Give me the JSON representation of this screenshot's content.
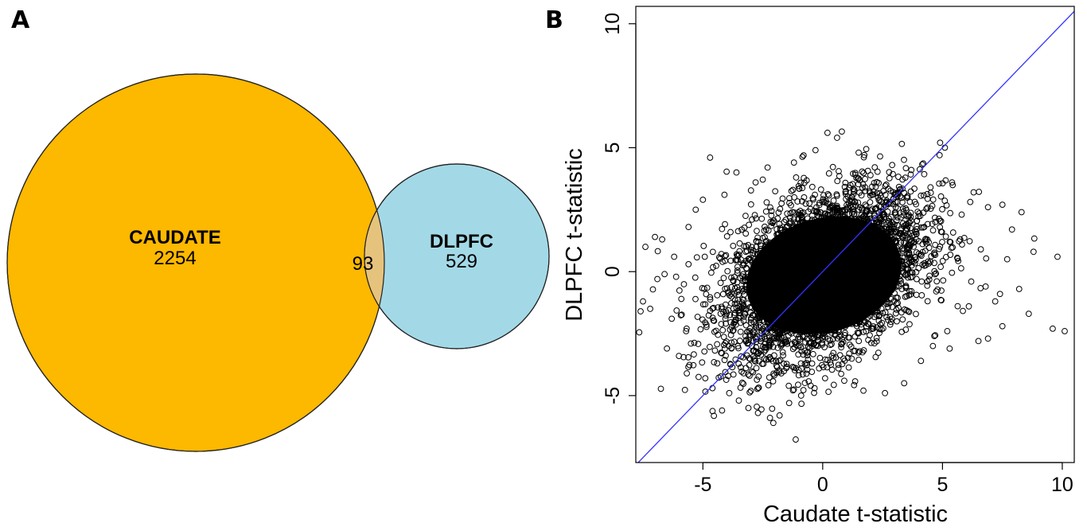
{
  "panel_labels": {
    "a": "A",
    "b": "B"
  },
  "colors": {
    "caudate": "#FDB800",
    "dlpfc": "#A3D9E7",
    "overlap": "#E6C37D",
    "identity_line": "#3333FF",
    "points": "#000000"
  },
  "chart_data": [
    {
      "type": "venn",
      "sets": [
        {
          "name": "CAUDATE",
          "count": "2254"
        },
        {
          "name": "DLPFC",
          "count": "529"
        }
      ],
      "overlap": "93"
    },
    {
      "type": "scatter",
      "xlabel": "Caudate t-statistic",
      "ylabel": "DLPFC t-statistic",
      "xlim": [
        -7.8,
        10.5
      ],
      "ylim": [
        -7.7,
        10.7
      ],
      "xticks": [
        -5,
        0,
        5,
        10
      ],
      "yticks": [
        -5,
        0,
        5,
        10
      ],
      "xtick_labels": [
        "-5",
        "0",
        "5",
        "10"
      ],
      "ytick_labels": [
        "-5",
        "0",
        "5",
        "10"
      ],
      "reference_line": {
        "slope": 1,
        "intercept": 0
      },
      "grid": false,
      "legend": "none",
      "points": [
        [
          0.2,
          5.6
        ],
        [
          0.6,
          5.4
        ],
        [
          -4.7,
          4.6
        ],
        [
          4.9,
          5.2
        ],
        [
          5.1,
          5.0
        ],
        [
          -3.6,
          4.0
        ],
        [
          -2.3,
          4.2
        ],
        [
          6.9,
          2.6
        ],
        [
          7.5,
          2.7
        ],
        [
          8.3,
          2.4
        ],
        [
          8.8,
          0.8
        ],
        [
          9.8,
          0.6
        ],
        [
          9.6,
          -2.3
        ],
        [
          10.1,
          -2.4
        ],
        [
          8.6,
          -1.7
        ],
        [
          7.4,
          -0.9
        ],
        [
          7.2,
          -1.2
        ],
        [
          8.2,
          -0.7
        ],
        [
          -7.0,
          1.4
        ],
        [
          -6.7,
          1.3
        ],
        [
          -7.4,
          1.0
        ],
        [
          -7.5,
          -1.2
        ],
        [
          -7.6,
          -1.6
        ],
        [
          -7.2,
          -1.5
        ],
        [
          -6.9,
          -0.3
        ],
        [
          -6.6,
          -0.1
        ],
        [
          -6.5,
          -3.1
        ],
        [
          -6.0,
          -3.4
        ],
        [
          -5.7,
          -2.4
        ],
        [
          -5.9,
          -1.1
        ],
        [
          -5.3,
          2.5
        ],
        [
          -5.6,
          1.8
        ],
        [
          -4.9,
          -4.3
        ],
        [
          -4.6,
          -4.7
        ],
        [
          -3.9,
          -4.9
        ],
        [
          -4.2,
          -5.6
        ],
        [
          -3.5,
          -5.2
        ],
        [
          -3.1,
          -5.5
        ],
        [
          -2.7,
          -5.7
        ],
        [
          -2.2,
          -5.9
        ],
        [
          -1.8,
          -5.8
        ],
        [
          -1.4,
          -5.3
        ],
        [
          -0.9,
          -5.0
        ],
        [
          -0.5,
          -4.6
        ],
        [
          0.1,
          -4.3
        ],
        [
          0.9,
          -4.4
        ],
        [
          1.7,
          -4.8
        ],
        [
          2.6,
          -4.9
        ],
        [
          3.4,
          -4.5
        ],
        [
          4.1,
          -3.6
        ],
        [
          4.6,
          -3.0
        ],
        [
          5.2,
          -2.4
        ],
        [
          6.5,
          -2.8
        ],
        [
          6.9,
          -2.7
        ],
        [
          6.1,
          -1.4
        ],
        [
          7.5,
          -2.2
        ],
        [
          5.8,
          2.3
        ],
        [
          6.3,
          3.2
        ],
        [
          5.4,
          3.6
        ],
        [
          4.5,
          3.4
        ],
        [
          3.7,
          4.1
        ],
        [
          2.9,
          4.3
        ],
        [
          1.5,
          4.8
        ],
        [
          -0.3,
          4.9
        ],
        [
          -1.2,
          4.4
        ],
        [
          -2.8,
          3.6
        ],
        [
          -4.1,
          3.1
        ],
        [
          -5.0,
          2.9
        ],
        [
          -5.6,
          0.3
        ],
        [
          -6.2,
          0.6
        ],
        [
          -6.3,
          -1.9
        ],
        [
          -5.5,
          -2.9
        ],
        [
          -4.4,
          -3.7
        ],
        [
          -3.3,
          -4.1
        ],
        [
          7.9,
          1.7
        ],
        [
          7.7,
          0.5
        ],
        [
          6.6,
          0.9
        ],
        [
          6.2,
          -0.4
        ],
        [
          6.8,
          -0.6
        ]
      ]
    }
  ]
}
